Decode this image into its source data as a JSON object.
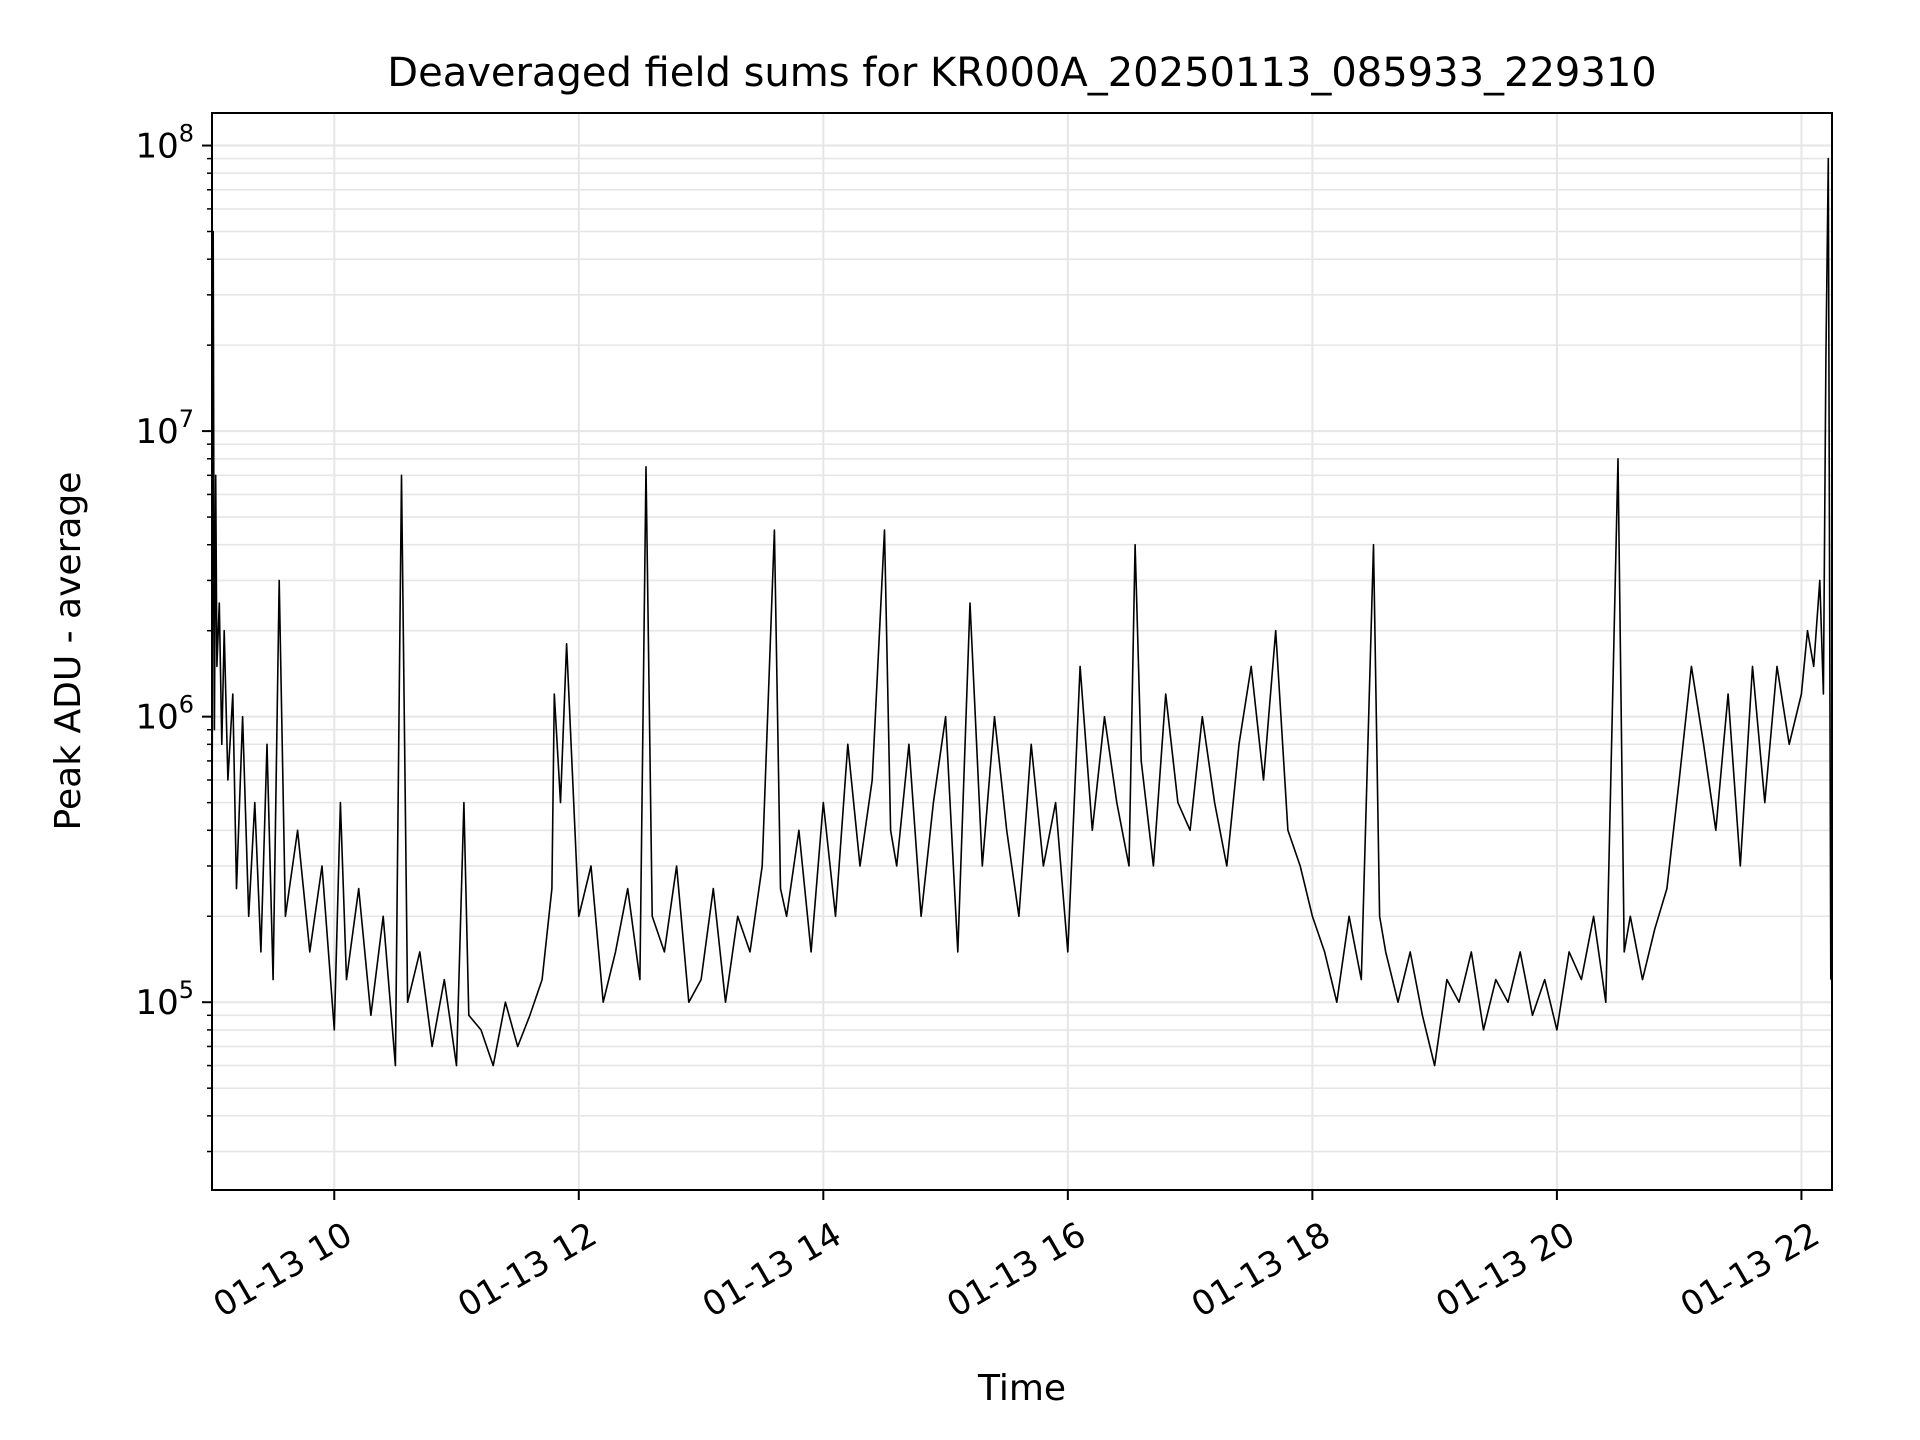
{
  "chart_data": {
    "type": "line",
    "title": "Deaveraged field sums for KR000A_20250113_085933_229310",
    "xlabel": "Time",
    "ylabel": "Peak ADU - average",
    "yscale": "log",
    "x_unit": "hours (time of day, 2025-01-13)",
    "xlim": [
      9.0,
      22.25
    ],
    "ylim": [
      22000,
      130000000
    ],
    "grid": true,
    "line_color": "#000000",
    "grid_color": "#e6e6e6",
    "x_ticks": [
      {
        "value": 10,
        "label": "01-13 10"
      },
      {
        "value": 12,
        "label": "01-13 12"
      },
      {
        "value": 14,
        "label": "01-13 14"
      },
      {
        "value": 16,
        "label": "01-13 16"
      },
      {
        "value": 18,
        "label": "01-13 18"
      },
      {
        "value": 20,
        "label": "01-13 20"
      },
      {
        "value": 22,
        "label": "01-13 22"
      }
    ],
    "y_ticks": [
      {
        "value": 100000,
        "base": "10",
        "exp": "5"
      },
      {
        "value": 1000000,
        "base": "10",
        "exp": "6"
      },
      {
        "value": 10000000,
        "base": "10",
        "exp": "7"
      },
      {
        "value": 100000000,
        "base": "10",
        "exp": "8"
      }
    ],
    "series": [
      {
        "x": [
          9.0,
          9.01,
          9.02,
          9.03,
          9.04,
          9.06,
          9.08,
          9.1,
          9.13,
          9.17,
          9.2,
          9.25,
          9.3,
          9.35,
          9.4,
          9.45,
          9.5,
          9.55,
          9.6,
          9.7,
          9.8,
          9.9,
          10.0,
          10.05,
          10.1,
          10.2,
          10.3,
          10.4,
          10.5,
          10.55,
          10.6,
          10.7,
          10.8,
          10.9,
          11.0,
          11.06,
          11.1,
          11.2,
          11.3,
          11.4,
          11.5,
          11.6,
          11.7,
          11.78,
          11.8,
          11.85,
          11.9,
          12.0,
          12.1,
          12.2,
          12.3,
          12.4,
          12.5,
          12.55,
          12.6,
          12.7,
          12.8,
          12.9,
          13.0,
          13.1,
          13.2,
          13.3,
          13.4,
          13.5,
          13.6,
          13.65,
          13.7,
          13.8,
          13.9,
          14.0,
          14.1,
          14.2,
          14.3,
          14.4,
          14.5,
          14.55,
          14.6,
          14.7,
          14.8,
          14.9,
          15.0,
          15.1,
          15.2,
          15.3,
          15.4,
          15.5,
          15.6,
          15.7,
          15.8,
          15.9,
          16.0,
          16.1,
          16.2,
          16.3,
          16.4,
          16.5,
          16.55,
          16.6,
          16.7,
          16.8,
          16.9,
          17.0,
          17.1,
          17.2,
          17.3,
          17.4,
          17.5,
          17.6,
          17.7,
          17.8,
          17.9,
          18.0,
          18.1,
          18.2,
          18.3,
          18.4,
          18.5,
          18.55,
          18.6,
          18.7,
          18.8,
          18.9,
          19.0,
          19.1,
          19.2,
          19.3,
          19.4,
          19.5,
          19.6,
          19.7,
          19.8,
          19.9,
          20.0,
          20.1,
          20.2,
          20.3,
          20.4,
          20.5,
          20.55,
          20.6,
          20.7,
          20.8,
          20.9,
          21.0,
          21.1,
          21.2,
          21.3,
          21.4,
          21.5,
          21.6,
          21.7,
          21.8,
          21.9,
          22.0,
          22.05,
          22.1,
          22.15,
          22.18,
          22.2,
          22.22,
          22.24
        ],
        "y": [
          250000,
          50000000,
          900000,
          7000000,
          1500000,
          2500000,
          800000,
          2000000,
          600000,
          1200000,
          250000,
          1000000,
          200000,
          500000,
          150000,
          800000,
          120000,
          3000000,
          200000,
          400000,
          150000,
          300000,
          80000,
          500000,
          120000,
          250000,
          90000,
          200000,
          60000,
          7000000,
          100000,
          150000,
          70000,
          120000,
          60000,
          500000,
          90000,
          80000,
          60000,
          100000,
          70000,
          90000,
          120000,
          250000,
          1200000,
          500000,
          1800000,
          200000,
          300000,
          100000,
          150000,
          250000,
          120000,
          7500000,
          200000,
          150000,
          300000,
          100000,
          120000,
          250000,
          100000,
          200000,
          150000,
          300000,
          4500000,
          250000,
          200000,
          400000,
          150000,
          500000,
          200000,
          800000,
          300000,
          600000,
          4500000,
          400000,
          300000,
          800000,
          200000,
          500000,
          1000000,
          150000,
          2500000,
          300000,
          1000000,
          400000,
          200000,
          800000,
          300000,
          500000,
          150000,
          1500000,
          400000,
          1000000,
          500000,
          300000,
          4000000,
          700000,
          300000,
          1200000,
          500000,
          400000,
          1000000,
          500000,
          300000,
          800000,
          1500000,
          600000,
          2000000,
          400000,
          300000,
          200000,
          150000,
          100000,
          200000,
          120000,
          4000000,
          200000,
          150000,
          100000,
          150000,
          90000,
          60000,
          120000,
          100000,
          150000,
          80000,
          120000,
          100000,
          150000,
          90000,
          120000,
          80000,
          150000,
          120000,
          200000,
          100000,
          8000000,
          150000,
          200000,
          120000,
          180000,
          250000,
          600000,
          1500000,
          800000,
          400000,
          1200000,
          300000,
          1500000,
          500000,
          1500000,
          800000,
          1200000,
          2000000,
          1500000,
          3000000,
          1200000,
          18000000,
          90000000,
          120000
        ]
      }
    ]
  }
}
